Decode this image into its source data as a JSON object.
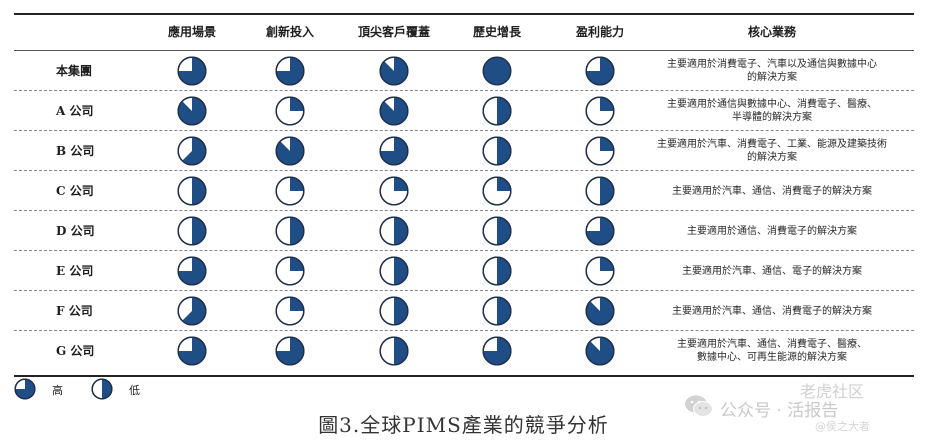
{
  "colors": {
    "fill": "#1f4e87",
    "outline": "#1f2f4a",
    "background": "#ffffff"
  },
  "headers": [
    "應用場景",
    "創新投入",
    "頂尖客戶覆蓋",
    "歷史增長",
    "盈利能力",
    "核心業務"
  ],
  "rows": [
    {
      "label": "本集團",
      "ratings": [
        0.75,
        0.75,
        0.875,
        1.0,
        0.75
      ],
      "desc_lines": [
        "主要適用於消費電子、汽車以及通信與數據中心",
        "的解決方案"
      ]
    },
    {
      "label": "A 公司",
      "ratings": [
        0.875,
        0.25,
        0.875,
        0.5,
        0.25
      ],
      "desc_lines": [
        "主要適用於通信與數據中心、消費電子、醫療、",
        "半導體的解決方案"
      ]
    },
    {
      "label": "B 公司",
      "ratings": [
        0.625,
        0.875,
        0.75,
        0.5,
        0.25
      ],
      "desc_lines": [
        "主要適用於汽車、消費電子、工業、能源及建築技術",
        "的解決方案"
      ]
    },
    {
      "label": "C 公司",
      "ratings": [
        0.5,
        0.25,
        0.25,
        0.25,
        0.5
      ],
      "desc_lines": [
        "主要適用於汽車、通信、消費電子的解決方案"
      ]
    },
    {
      "label": "D 公司",
      "ratings": [
        0.5,
        0.5,
        0.5,
        0.5,
        0.75
      ],
      "desc_lines": [
        "主要適用於通信、消費電子的解決方案"
      ]
    },
    {
      "label": "E 公司",
      "ratings": [
        0.75,
        0.25,
        0.5,
        0.5,
        0.25
      ],
      "desc_lines": [
        "主要適用於汽車、通信、電子的解決方案"
      ]
    },
    {
      "label": "F 公司",
      "ratings": [
        0.625,
        0.25,
        0.5,
        0.5,
        0.875
      ],
      "desc_lines": [
        "主要適用於汽車、通信、消費電子的解決方案"
      ]
    },
    {
      "label": "G 公司",
      "ratings": [
        0.75,
        0.75,
        0.5,
        0.75,
        0.875
      ],
      "desc_lines": [
        "主要適用於汽車、通信、消費電子、醫療、",
        "數據中心、可再生能源的解決方案"
      ]
    }
  ],
  "legend": [
    {
      "rating": 0.75,
      "label": "高"
    },
    {
      "rating": 0.5,
      "label": "低"
    }
  ],
  "caption": "圖3.全球PIMS產業的競爭分析",
  "watermark": {
    "main": "公众号 · 活报告",
    "top": "老虎社区",
    "handle": "@侯之大者",
    "icon": "wechat-icon"
  }
}
